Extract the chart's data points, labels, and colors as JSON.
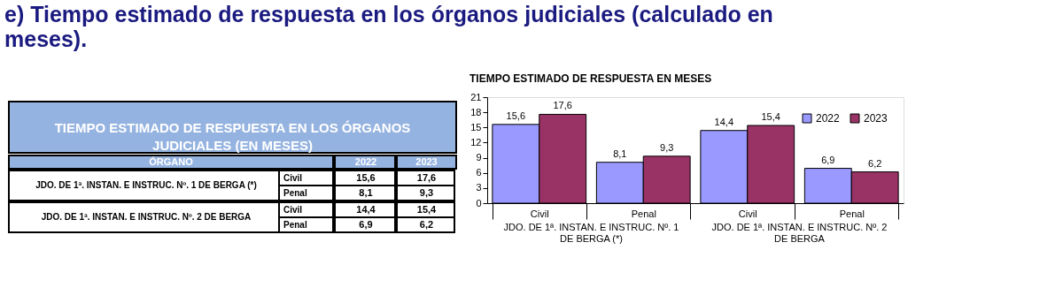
{
  "chart_data": {
    "type": "bar",
    "title": "e) Tiempo estimado de respuesta en los órganos judiciales (calculado en meses).",
    "subtitle": "TIEMPO ESTIMADO DE RESPUESTA EN MESES",
    "categories": [
      "Civil",
      "Penal",
      "Civil",
      "Penal"
    ],
    "series": [
      {
        "name": "2022",
        "color": "#9999ff",
        "values": [
          15.6,
          8.1,
          14.4,
          6.9
        ],
        "value_labels": [
          "15,6",
          "8,1",
          "14,4",
          "6,9"
        ]
      },
      {
        "name": "2023",
        "color": "#993366",
        "values": [
          17.6,
          9.3,
          15.4,
          6.2
        ],
        "value_labels": [
          "17,6",
          "9,3",
          "15,4",
          "6,2"
        ]
      }
    ],
    "ylim": [
      0,
      21
    ],
    "yticks": [
      0,
      3,
      6,
      9,
      12,
      15,
      18,
      21
    ],
    "grid": false,
    "legend": "top right",
    "annotations": [
      "TIEMPO ESTIMADO DE RESPUESTA EN LOS ÓRGANOS JUDICIALES (EN MESES)",
      "ÓRGANO",
      "JDO.  DE 1ª.  INSTAN. E INSTRUC. Nº.  1 DE BERGA (*)",
      "JDO.  DE 1ª.  INSTAN. E INSTRUC. Nº.  2 DE BERGA"
    ]
  }
}
